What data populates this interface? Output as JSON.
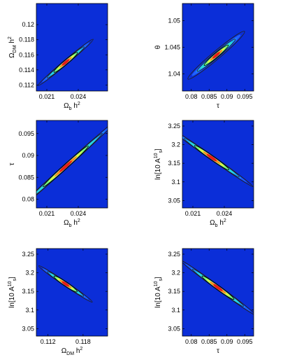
{
  "chart_data": [
    {
      "type": "heatmap",
      "xlabel": {
        "base": "Ω",
        "sub": "b",
        "tail": " h",
        "sup": "2"
      },
      "ylabel": {
        "base": "Ω",
        "sub": "DM",
        "tail": " h",
        "sup": "2"
      },
      "xlim": [
        0.02,
        0.0268
      ],
      "ylim": [
        0.1112,
        0.1228
      ],
      "xticks": [
        0.021,
        0.024
      ],
      "xtick_labels": [
        "0.021",
        "0.024"
      ],
      "yticks": [
        0.112,
        0.114,
        0.116,
        0.118,
        0.12
      ],
      "ytick_labels": [
        "0.112",
        "0.114",
        "0.116",
        "0.118",
        "0.12"
      ],
      "peak": [
        0.0228,
        0.115
      ],
      "angle": 40,
      "blob": [
        0.0028,
        0.0018,
        0.00055,
        0.0004
      ]
    },
    {
      "type": "heatmap",
      "xlabel": {
        "base": "τ",
        "sub": "",
        "tail": "",
        "sup": ""
      },
      "ylabel": {
        "base": "θ",
        "sub": "",
        "tail": "",
        "sup": ""
      },
      "xlim": [
        0.0775,
        0.0975
      ],
      "ylim": [
        1.0368,
        1.0532
      ],
      "xticks": [
        0.08,
        0.085,
        0.09,
        0.095
      ],
      "xtick_labels": [
        "0.08",
        "0.085",
        "0.09",
        "0.095"
      ],
      "yticks": [
        1.04,
        1.045,
        1.05
      ],
      "ytick_labels": [
        "1.04",
        "1.045",
        "1.05"
      ],
      "peak": [
        0.087,
        1.0435
      ],
      "angle": 40,
      "blob": [
        0.0085,
        0.0075,
        0.0011,
        0.001
      ]
    },
    {
      "type": "heatmap",
      "xlabel": {
        "base": "Ω",
        "sub": "b",
        "tail": " h",
        "sup": "2"
      },
      "ylabel": {
        "base": "τ",
        "sub": "",
        "tail": "",
        "sup": ""
      },
      "xlim": [
        0.02,
        0.0268
      ],
      "ylim": [
        0.078,
        0.098
      ],
      "xticks": [
        0.021,
        0.024
      ],
      "xtick_labels": [
        "0.021",
        "0.024"
      ],
      "yticks": [
        0.08,
        0.085,
        0.09,
        0.095
      ],
      "ytick_labels": [
        "0.08",
        "0.085",
        "0.09",
        "0.095"
      ],
      "peak": [
        0.0228,
        0.0875
      ],
      "angle": 42,
      "blob": [
        0.006,
        0.004,
        0.00022,
        0.00016
      ]
    },
    {
      "type": "heatmap",
      "xlabel": {
        "base": "Ω",
        "sub": "b",
        "tail": " h",
        "sup": "2"
      },
      "ylabel": {
        "base": "ln[10",
        "sub": "",
        "tail": " A",
        "sup": "10",
        "sub2": "s",
        "tail2": "]"
      },
      "xlim": [
        0.02,
        0.0268
      ],
      "ylim": [
        3.03,
        3.265
      ],
      "xticks": [
        0.021,
        0.024
      ],
      "xtick_labels": [
        "0.021",
        "0.024"
      ],
      "yticks": [
        3.05,
        3.1,
        3.15,
        3.2,
        3.25
      ],
      "ytick_labels": [
        "3.05",
        "3.1",
        "3.15",
        "3.2",
        "3.25"
      ],
      "peak": [
        0.0228,
        3.165
      ],
      "angle": -35,
      "blob": [
        0.004,
        0.0025,
        0.0008,
        0.0007
      ]
    },
    {
      "type": "heatmap",
      "xlabel": {
        "base": "Ω",
        "sub": "DM",
        "tail": " h",
        "sup": "2"
      },
      "ylabel": {
        "base": "ln[10",
        "sub": "",
        "tail": " A",
        "sup": "10",
        "sub2": "s",
        "tail2": "]"
      },
      "xlim": [
        0.11,
        0.1222
      ],
      "ylim": [
        3.03,
        3.265
      ],
      "xticks": [
        0.112,
        0.118
      ],
      "xtick_labels": [
        "0.112",
        "0.118"
      ],
      "yticks": [
        3.05,
        3.1,
        3.15,
        3.2,
        3.25
      ],
      "ytick_labels": [
        "3.05",
        "3.1",
        "3.15",
        "3.2",
        "3.25"
      ],
      "peak": [
        0.115,
        3.17
      ],
      "angle": -34,
      "blob": [
        0.0045,
        0.0028,
        0.001,
        0.0008
      ]
    },
    {
      "type": "heatmap",
      "xlabel": {
        "base": "τ",
        "sub": "",
        "tail": "",
        "sup": ""
      },
      "ylabel": {
        "base": "ln[10",
        "sub": "",
        "tail": " A",
        "sup": "10",
        "sub2": "s",
        "tail2": "]"
      },
      "xlim": [
        0.0775,
        0.0975
      ],
      "ylim": [
        3.03,
        3.265
      ],
      "xticks": [
        0.08,
        0.085,
        0.09,
        0.095
      ],
      "xtick_labels": [
        "0.08",
        "0.085",
        "0.09",
        "0.095"
      ],
      "yticks": [
        3.05,
        3.1,
        3.15,
        3.2,
        3.25
      ],
      "ytick_labels": [
        "3.05",
        "3.1",
        "3.15",
        "3.2",
        "3.25"
      ],
      "peak": [
        0.0875,
        3.16
      ],
      "angle": -36,
      "blob": [
        0.011,
        0.0075,
        0.0022,
        0.0018
      ]
    }
  ]
}
